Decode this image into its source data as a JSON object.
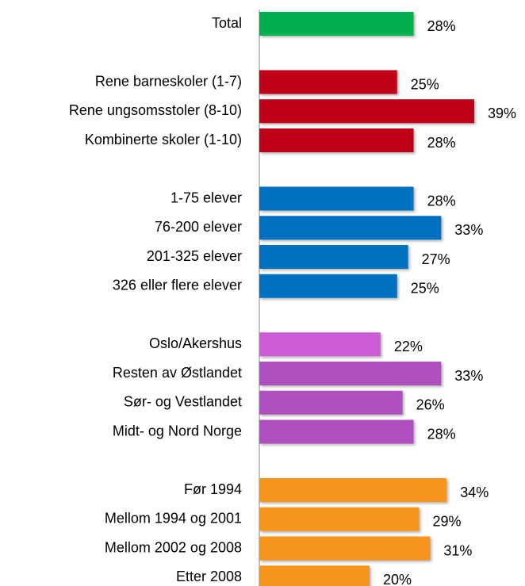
{
  "chart_data": {
    "type": "hbar",
    "categories": [
      "Total",
      null,
      "Rene barneskoler (1-7)",
      "Rene ungsomsstoler (8-10)",
      "Kombinerte skoler (1-10)",
      null,
      "1-75 elever",
      "76-200 elever",
      "201-325 elever",
      "326 eller flere elever",
      null,
      "Oslo/Akershus",
      "Resten av Østlandet",
      "Sør- og Vestlandet",
      "Midt- og Nord Norge",
      null,
      "Før 1994",
      "Mellom 1994 og 2001",
      "Mellom 2002 og 2008",
      "Etter 2008"
    ],
    "values": [
      28,
      null,
      25,
      39,
      28,
      null,
      28,
      33,
      27,
      25,
      null,
      22,
      33,
      26,
      28,
      null,
      34,
      29,
      31,
      20
    ],
    "value_labels": [
      "28%",
      null,
      "25%",
      "39%",
      "28%",
      null,
      "28%",
      "33%",
      "27%",
      "25%",
      null,
      "22%",
      "33%",
      "26%",
      "28%",
      null,
      "34%",
      "29%",
      "31%",
      "20%"
    ],
    "colors": [
      "#00b050",
      null,
      "#c00018",
      "#c00018",
      "#c00018",
      null,
      "#0070c0",
      "#0070c0",
      "#0070c0",
      "#0070c0",
      null,
      "#cc5cd6",
      "#b04fc0",
      "#b04fc0",
      "#b04fc0",
      null,
      "#f7941d",
      "#f7941d",
      "#f7941d",
      "#f7941d"
    ]
  }
}
